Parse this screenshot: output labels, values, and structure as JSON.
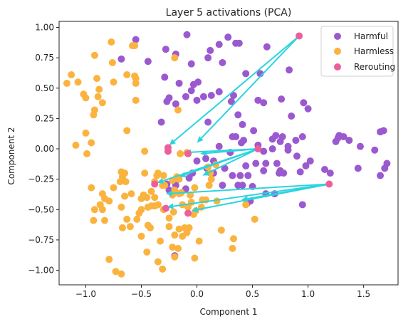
{
  "chart_data": {
    "type": "scatter",
    "title": "Layer 5 activations (PCA)",
    "xlabel": "Component 1",
    "ylabel": "Component 2",
    "xlim": [
      -1.24,
      1.81
    ],
    "ylim": [
      -1.12,
      1.05
    ],
    "xticks": [
      -1.0,
      -0.5,
      0.0,
      0.5,
      1.0,
      1.5
    ],
    "xtick_labels": [
      "−1.0",
      "−0.5",
      "0.0",
      "0.5",
      "1.0",
      "1.5"
    ],
    "yticks": [
      -1.0,
      -0.75,
      -0.5,
      -0.25,
      0.0,
      0.25,
      0.5,
      0.75,
      1.0
    ],
    "ytick_labels": [
      "−1.00",
      "−0.75",
      "−0.50",
      "−0.25",
      "0.00",
      "0.25",
      "0.50",
      "0.75",
      "1.00"
    ],
    "grid": false,
    "legend_position": "top-right",
    "arrow_color": "#2ad4df",
    "series": [
      {
        "name": "Harmful",
        "color": "#9b59d0",
        "points": [
          [
            -0.55,
            0.9
          ],
          [
            -0.28,
            0.82
          ],
          [
            -0.09,
            0.94
          ],
          [
            0.12,
            0.81
          ],
          [
            0.2,
            0.86
          ],
          [
            0.28,
            0.92
          ],
          [
            0.35,
            0.87
          ],
          [
            0.38,
            0.87
          ],
          [
            0.63,
            0.84
          ],
          [
            -0.68,
            0.74
          ],
          [
            -0.19,
            0.78
          ],
          [
            -0.44,
            0.72
          ],
          [
            -0.05,
            0.7
          ],
          [
            0.1,
            0.75
          ],
          [
            0.23,
            0.71
          ],
          [
            -0.29,
            0.59
          ],
          [
            -0.16,
            0.54
          ],
          [
            0.01,
            0.55
          ],
          [
            0.13,
            0.44
          ],
          [
            0.33,
            0.44
          ],
          [
            0.57,
            0.62
          ],
          [
            0.83,
            0.65
          ],
          [
            -0.05,
            0.48
          ],
          [
            -0.03,
            0.53
          ],
          [
            -0.25,
            0.42
          ],
          [
            -0.1,
            0.43
          ],
          [
            0.06,
            0.43
          ],
          [
            0.2,
            0.47
          ],
          [
            0.31,
            0.39
          ],
          [
            0.44,
            0.62
          ],
          [
            0.55,
            0.4
          ],
          [
            0.76,
            0.41
          ],
          [
            0.6,
            0.38
          ],
          [
            0.96,
            0.38
          ],
          [
            -0.27,
            0.39
          ],
          [
            -0.19,
            0.37
          ],
          [
            0.0,
            0.4
          ],
          [
            0.37,
            0.28
          ],
          [
            0.85,
            0.27
          ],
          [
            1.0,
            0.33
          ],
          [
            -0.32,
            0.22
          ],
          [
            0.1,
            0.22
          ],
          [
            0.41,
            0.2
          ],
          [
            0.51,
            0.15
          ],
          [
            0.32,
            0.1
          ],
          [
            0.35,
            0.1
          ],
          [
            0.42,
            0.07
          ],
          [
            0.71,
            0.11
          ],
          [
            0.75,
            0.06
          ],
          [
            0.68,
            0.08
          ],
          [
            0.77,
            0.1
          ],
          [
            0.82,
            0.02
          ],
          [
            0.89,
            0.07
          ],
          [
            0.95,
            0.1
          ],
          [
            1.27,
            0.09
          ],
          [
            1.28,
            0.11
          ],
          [
            1.25,
            0.06
          ],
          [
            1.32,
            0.1
          ],
          [
            1.37,
            0.07
          ],
          [
            1.68,
            0.15
          ],
          [
            1.65,
            0.14
          ],
          [
            0.2,
            0.02
          ],
          [
            0.3,
            -0.03
          ],
          [
            0.4,
            0.05
          ],
          [
            0.55,
            0.03
          ],
          [
            0.6,
            -0.02
          ],
          [
            0.68,
            0.0
          ],
          [
            0.82,
            -0.01
          ],
          [
            0.9,
            -0.06
          ],
          [
            1.02,
            -0.1
          ],
          [
            1.47,
            0.02
          ],
          [
            1.6,
            -0.01
          ],
          [
            0.0,
            -0.1
          ],
          [
            0.08,
            -0.08
          ],
          [
            0.15,
            -0.1
          ],
          [
            0.25,
            -0.16
          ],
          [
            0.44,
            -0.14
          ],
          [
            0.53,
            -0.12
          ],
          [
            0.62,
            -0.12
          ],
          [
            0.72,
            -0.12
          ],
          [
            0.75,
            -0.18
          ],
          [
            0.98,
            -0.14
          ],
          [
            0.93,
            -0.19
          ],
          [
            1.15,
            -0.17
          ],
          [
            1.45,
            -0.16
          ],
          [
            1.71,
            -0.12
          ],
          [
            1.69,
            -0.16
          ],
          [
            1.65,
            -0.22
          ],
          [
            0.09,
            -0.16
          ],
          [
            0.15,
            -0.2
          ],
          [
            0.32,
            -0.22
          ],
          [
            0.39,
            -0.22
          ],
          [
            0.46,
            -0.22
          ],
          [
            0.6,
            -0.18
          ],
          [
            0.74,
            -0.2
          ],
          [
            0.78,
            -0.2
          ],
          [
            1.2,
            -0.2
          ],
          [
            -0.04,
            -0.2
          ],
          [
            -0.07,
            -0.24
          ],
          [
            0.23,
            -0.3
          ],
          [
            0.37,
            -0.3
          ],
          [
            0.41,
            -0.3
          ],
          [
            0.5,
            -0.31
          ],
          [
            0.62,
            -0.37
          ],
          [
            0.7,
            -0.37
          ],
          [
            0.45,
            -0.45
          ],
          [
            0.48,
            -0.43
          ],
          [
            0.95,
            -0.46
          ],
          [
            -0.1,
            -0.33
          ],
          [
            -0.27,
            -0.29
          ],
          [
            -0.25,
            -0.34
          ],
          [
            -0.22,
            -0.37
          ],
          [
            -0.19,
            -0.3
          ],
          [
            -0.2,
            -0.88
          ]
        ]
      },
      {
        "name": "Harmless",
        "color": "#fbb33f",
        "points": [
          [
            -0.77,
            0.88
          ],
          [
            -0.58,
            0.85
          ],
          [
            -0.56,
            0.85
          ],
          [
            -0.92,
            0.77
          ],
          [
            -0.76,
            0.71
          ],
          [
            -0.2,
            0.75
          ],
          [
            -0.56,
            0.6
          ],
          [
            -0.55,
            0.58
          ],
          [
            -1.13,
            0.61
          ],
          [
            -1.07,
            0.55
          ],
          [
            -0.9,
            0.58
          ],
          [
            -0.75,
            0.55
          ],
          [
            -0.63,
            0.61
          ],
          [
            -0.55,
            0.54
          ],
          [
            -1.17,
            0.54
          ],
          [
            -1.02,
            0.45
          ],
          [
            -0.88,
            0.49
          ],
          [
            -0.89,
            0.43
          ],
          [
            -1.0,
            0.42
          ],
          [
            -0.85,
            0.38
          ],
          [
            -0.92,
            0.32
          ],
          [
            -0.93,
            0.28
          ],
          [
            -0.55,
            0.4
          ],
          [
            -0.17,
            0.32
          ],
          [
            -0.63,
            0.15
          ],
          [
            -1.0,
            0.13
          ],
          [
            -1.09,
            0.03
          ],
          [
            -0.95,
            0.05
          ],
          [
            -0.99,
            -0.04
          ],
          [
            -0.47,
            -0.02
          ],
          [
            -0.15,
            -0.04
          ],
          [
            -0.09,
            -0.03
          ],
          [
            0.17,
            -0.13
          ],
          [
            0.1,
            -0.15
          ],
          [
            -0.47,
            -0.2
          ],
          [
            -0.36,
            -0.22
          ],
          [
            -0.35,
            -0.2
          ],
          [
            -0.68,
            -0.19
          ],
          [
            -0.65,
            -0.2
          ],
          [
            -0.67,
            -0.23
          ],
          [
            -0.69,
            -0.27
          ],
          [
            -0.64,
            -0.27
          ],
          [
            -0.3,
            -0.22
          ],
          [
            -0.22,
            -0.26
          ],
          [
            -0.18,
            -0.23
          ],
          [
            -0.16,
            -0.25
          ],
          [
            -0.29,
            -0.3
          ],
          [
            -0.31,
            -0.3
          ],
          [
            -0.38,
            -0.27
          ],
          [
            -0.95,
            -0.32
          ],
          [
            -0.85,
            -0.37
          ],
          [
            -0.75,
            -0.32
          ],
          [
            -0.92,
            -0.5
          ],
          [
            -0.87,
            -0.46
          ],
          [
            -0.83,
            -0.41
          ],
          [
            -0.79,
            -0.43
          ],
          [
            -0.65,
            -0.39
          ],
          [
            -0.59,
            -0.37
          ],
          [
            -0.48,
            -0.38
          ],
          [
            -0.45,
            -0.4
          ],
          [
            -0.5,
            -0.41
          ],
          [
            -0.41,
            -0.35
          ],
          [
            -0.38,
            -0.4
          ],
          [
            -0.22,
            -0.38
          ],
          [
            -0.2,
            -0.34
          ],
          [
            -0.16,
            -0.37
          ],
          [
            -0.14,
            -0.36
          ],
          [
            -0.06,
            -0.38
          ],
          [
            -0.02,
            -0.32
          ],
          [
            -0.05,
            -0.44
          ],
          [
            -0.08,
            -0.48
          ],
          [
            -0.13,
            -0.46
          ],
          [
            -0.21,
            -0.52
          ],
          [
            -0.25,
            -0.57
          ],
          [
            -0.3,
            -0.5
          ],
          [
            -0.35,
            -0.46
          ],
          [
            -0.38,
            -0.47
          ],
          [
            -0.41,
            -0.47
          ],
          [
            -0.44,
            -0.48
          ],
          [
            -0.5,
            -0.5
          ],
          [
            -0.52,
            -0.53
          ],
          [
            -0.68,
            -0.48
          ],
          [
            -0.85,
            -0.5
          ],
          [
            -0.93,
            -0.59
          ],
          [
            -0.83,
            -0.59
          ],
          [
            -0.63,
            -0.58
          ],
          [
            -0.6,
            -0.64
          ],
          [
            -0.67,
            -0.65
          ],
          [
            -0.54,
            -0.58
          ],
          [
            -0.44,
            -0.63
          ],
          [
            -0.42,
            -0.65
          ],
          [
            -0.16,
            -0.66
          ],
          [
            -0.11,
            -0.65
          ],
          [
            -0.07,
            -0.65
          ],
          [
            -0.09,
            -0.69
          ],
          [
            -0.01,
            -0.51
          ],
          [
            -0.03,
            -0.54
          ],
          [
            -0.25,
            -0.64
          ],
          [
            -0.2,
            -0.71
          ],
          [
            -0.13,
            -0.72
          ],
          [
            -0.33,
            -0.76
          ],
          [
            -0.5,
            -0.72
          ],
          [
            -0.45,
            -0.85
          ],
          [
            -0.2,
            -0.89
          ],
          [
            -0.22,
            -0.81
          ],
          [
            -0.17,
            -0.82
          ],
          [
            -0.35,
            -0.93
          ],
          [
            -0.02,
            -0.9
          ],
          [
            -0.73,
            -1.01
          ],
          [
            -0.79,
            -0.91
          ],
          [
            -0.68,
            -1.03
          ],
          [
            -0.31,
            -0.99
          ],
          [
            0.02,
            -0.76
          ],
          [
            0.22,
            -0.67
          ],
          [
            0.33,
            -0.74
          ],
          [
            0.32,
            -0.82
          ],
          [
            0.52,
            -0.58
          ],
          [
            0.44,
            -0.46
          ],
          [
            0.18,
            -0.43
          ],
          [
            0.05,
            -0.42
          ],
          [
            0.04,
            -0.48
          ],
          [
            0.08,
            -0.42
          ],
          [
            0.11,
            -0.3
          ],
          [
            0.12,
            -0.2
          ],
          [
            0.13,
            -0.25
          ]
        ]
      },
      {
        "name": "Rerouting",
        "color": "#ec5f9c",
        "points": [
          [
            0.92,
            0.93
          ],
          [
            -0.26,
            0.01
          ],
          [
            -0.26,
            -0.02
          ],
          [
            -0.08,
            -0.04
          ],
          [
            0.55,
            0.0
          ],
          [
            1.19,
            -0.29
          ],
          [
            -0.38,
            -0.29
          ],
          [
            -0.28,
            -0.49
          ],
          [
            -0.08,
            -0.53
          ]
        ]
      }
    ],
    "arrows": [
      {
        "from": [
          0.92,
          0.93
        ],
        "to": [
          -0.25,
          0.03
        ]
      },
      {
        "from": [
          0.92,
          0.93
        ],
        "to": [
          0.0,
          0.05
        ]
      },
      {
        "from": [
          0.55,
          0.0
        ],
        "to": [
          -0.11,
          -0.03
        ]
      },
      {
        "from": [
          0.55,
          0.0
        ],
        "to": [
          0.03,
          -0.04
        ]
      },
      {
        "from": [
          0.55,
          0.0
        ],
        "to": [
          -0.16,
          -0.23
        ]
      },
      {
        "from": [
          0.55,
          0.0
        ],
        "to": [
          -0.36,
          -0.28
        ]
      },
      {
        "from": [
          0.55,
          0.0
        ],
        "to": [
          0.05,
          -0.22
        ]
      },
      {
        "from": [
          1.19,
          -0.29
        ],
        "to": [
          0.4,
          -0.42
        ]
      },
      {
        "from": [
          1.19,
          -0.29
        ],
        "to": [
          -0.28,
          -0.37
        ]
      },
      {
        "from": [
          1.19,
          -0.29
        ],
        "to": [
          -0.27,
          -0.48
        ]
      },
      {
        "from": [
          1.19,
          -0.29
        ],
        "to": [
          -0.05,
          -0.51
        ]
      }
    ]
  }
}
